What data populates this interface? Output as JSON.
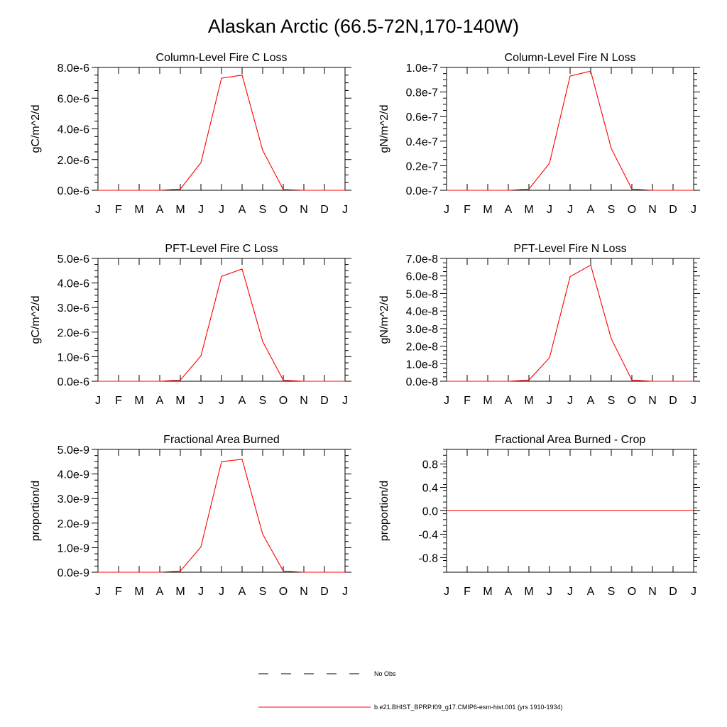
{
  "figure": {
    "title": "Alaskan Arctic (66.5-72N,170-140W)"
  },
  "legend": {
    "items": [
      {
        "label": "No Obs",
        "color": "#000000",
        "style": "dashed"
      },
      {
        "label": "b.e21.BHIST_BPRP.f09_g17.CMIP6-esm-hist.001 (yrs 1910-1934)",
        "color": "#ff0000",
        "style": "solid"
      }
    ]
  },
  "chart_data": [
    {
      "type": "line",
      "title": "Column-Level Fire C Loss",
      "ylabel": "gC/m^2/d",
      "xlabel": "",
      "categories": [
        "J",
        "F",
        "M",
        "A",
        "M",
        "J",
        "J",
        "A",
        "S",
        "O",
        "N",
        "D",
        "J"
      ],
      "ylim": [
        0,
        8e-06
      ],
      "yticks": [
        0,
        2e-06,
        4e-06,
        6e-06,
        8e-06
      ],
      "ytick_labels": [
        "0.0e-6",
        "2.0e-6",
        "4.0e-6",
        "6.0e-6",
        "8.0e-6"
      ],
      "series": [
        {
          "color": "#ff0000",
          "values": [
            0,
            0,
            0,
            0,
            8e-08,
            1.8e-06,
            7.3e-06,
            7.5e-06,
            2.6e-06,
            5e-08,
            0,
            0,
            0
          ]
        }
      ]
    },
    {
      "type": "line",
      "title": "Column-Level Fire N Loss",
      "ylabel": "gN/m^2/d",
      "xlabel": "",
      "categories": [
        "J",
        "F",
        "M",
        "A",
        "M",
        "J",
        "J",
        "A",
        "S",
        "O",
        "N",
        "D",
        "J"
      ],
      "ylim": [
        0,
        1e-07
      ],
      "yticks": [
        0,
        2e-08,
        4e-08,
        6e-08,
        8e-08,
        1e-07
      ],
      "ytick_labels": [
        "0.0e-7",
        "0.2e-7",
        "0.4e-7",
        "0.6e-7",
        "0.8e-7",
        "1.0e-7"
      ],
      "series": [
        {
          "color": "#ff0000",
          "values": [
            0,
            0,
            0,
            0,
            1e-09,
            2.2e-08,
            9.3e-08,
            9.7e-08,
            3.4e-08,
            1e-09,
            0,
            0,
            0
          ]
        }
      ]
    },
    {
      "type": "line",
      "title": "PFT-Level Fire C Loss",
      "ylabel": "gC/m^2/d",
      "xlabel": "",
      "categories": [
        "J",
        "F",
        "M",
        "A",
        "M",
        "J",
        "J",
        "A",
        "S",
        "O",
        "N",
        "D",
        "J"
      ],
      "ylim": [
        0,
        5e-06
      ],
      "yticks": [
        0,
        1e-06,
        2e-06,
        3e-06,
        4e-06,
        5e-06
      ],
      "ytick_labels": [
        "0.0e-6",
        "1.0e-6",
        "2.0e-6",
        "3.0e-6",
        "4.0e-6",
        "5.0e-6"
      ],
      "series": [
        {
          "color": "#ff0000",
          "values": [
            0,
            0,
            0,
            0,
            5e-08,
            1.03e-06,
            4.27e-06,
            4.57e-06,
            1.62e-06,
            4e-08,
            0,
            0,
            0
          ]
        }
      ]
    },
    {
      "type": "line",
      "title": "PFT-Level Fire N Loss",
      "ylabel": "gN/m^2/d",
      "xlabel": "",
      "categories": [
        "J",
        "F",
        "M",
        "A",
        "M",
        "J",
        "J",
        "A",
        "S",
        "O",
        "N",
        "D",
        "J"
      ],
      "ylim": [
        0,
        7e-08
      ],
      "yticks": [
        0,
        1e-08,
        2e-08,
        3e-08,
        4e-08,
        5e-08,
        6e-08,
        7e-08
      ],
      "ytick_labels": [
        "0.0e-8",
        "1.0e-8",
        "2.0e-8",
        "3.0e-8",
        "4.0e-8",
        "5.0e-8",
        "6.0e-8",
        "7.0e-8"
      ],
      "series": [
        {
          "color": "#ff0000",
          "values": [
            0,
            0,
            0,
            0,
            7e-10,
            1.34e-08,
            5.96e-08,
            6.62e-08,
            2.42e-08,
            7e-10,
            0,
            0,
            0
          ]
        }
      ]
    },
    {
      "type": "line",
      "title": "Fractional Area Burned",
      "ylabel": "proportion/d",
      "xlabel": "",
      "categories": [
        "J",
        "F",
        "M",
        "A",
        "M",
        "J",
        "J",
        "A",
        "S",
        "O",
        "N",
        "D",
        "J"
      ],
      "ylim": [
        0,
        5e-09
      ],
      "yticks": [
        0,
        1e-09,
        2e-09,
        3e-09,
        4e-09,
        5e-09
      ],
      "ytick_labels": [
        "0.0e-9",
        "1.0e-9",
        "2.0e-9",
        "3.0e-9",
        "4.0e-9",
        "5.0e-9"
      ],
      "series": [
        {
          "color": "#ff0000",
          "values": [
            0,
            0,
            0,
            0,
            5e-11,
            1.03e-09,
            4.5e-09,
            4.6e-09,
            1.55e-09,
            5e-11,
            0,
            0,
            0
          ]
        }
      ]
    },
    {
      "type": "line",
      "title": "Fractional Area Burned - Crop",
      "ylabel": "proportion/d",
      "xlabel": "",
      "categories": [
        "J",
        "F",
        "M",
        "A",
        "M",
        "J",
        "J",
        "A",
        "S",
        "O",
        "N",
        "D",
        "J"
      ],
      "ylim": [
        -1.05,
        1.05
      ],
      "yticks": [
        -0.8,
        -0.4,
        0,
        0.4,
        0.8
      ],
      "ytick_labels": [
        "-0.8",
        "-0.4",
        "0.0",
        "0.4",
        "0.8"
      ],
      "series": [
        {
          "color": "#ff0000",
          "values": [
            0,
            0,
            0,
            0,
            0,
            0,
            0,
            0,
            0,
            0,
            0,
            0,
            0
          ]
        }
      ]
    }
  ]
}
